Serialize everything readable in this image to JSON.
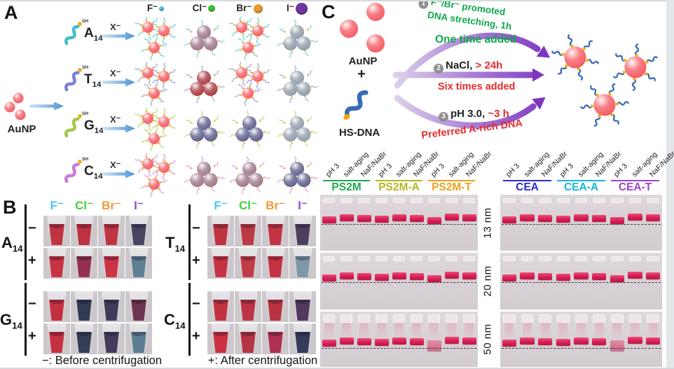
{
  "panel_a": {
    "label": "A",
    "aunp_label": "AuNP",
    "x_label": "X⁻",
    "thiol_label": "SH",
    "sphere_color": "#f4575f",
    "ions": [
      {
        "label": "F⁻",
        "dot_color": "#5fc3ec",
        "dot_size": 7
      },
      {
        "label": "Cl⁻",
        "dot_color": "#3bc43b",
        "dot_size": 10
      },
      {
        "label": "Br⁻",
        "dot_color": "#eb9a2e",
        "dot_size": 13
      },
      {
        "label": "I⁻",
        "dot_color": "#6f35a0",
        "dot_size": 17
      }
    ],
    "rows": [
      {
        "base": "A",
        "sub": "14",
        "strand_color": "#41bfca",
        "cells": [
          {
            "state": "dispersed"
          },
          {
            "state": "aggregated",
            "color": "#9c7388"
          },
          {
            "state": "dispersed"
          },
          {
            "state": "aggregated",
            "color": "#8f9aa6"
          }
        ]
      },
      {
        "base": "T",
        "sub": "14",
        "strand_color": "#7d82d8",
        "cells": [
          {
            "state": "dispersed"
          },
          {
            "state": "aggregated",
            "color": "#a8343c"
          },
          {
            "state": "dispersed"
          },
          {
            "state": "aggregated",
            "color": "#8f9aa6"
          }
        ]
      },
      {
        "base": "G",
        "sub": "14",
        "strand_color": "#a3c94e",
        "cells": [
          {
            "state": "dispersed"
          },
          {
            "state": "aggregated",
            "color": "#5a5b88"
          },
          {
            "state": "aggregated",
            "color": "#5a5b88"
          },
          {
            "state": "aggregated",
            "color": "#8f9aa6"
          }
        ]
      },
      {
        "base": "C",
        "sub": "14",
        "strand_color": "#c97bd9",
        "cells": [
          {
            "state": "dispersed"
          },
          {
            "state": "aggregated",
            "color": "#9c7388"
          },
          {
            "state": "aggregated",
            "color": "#9c7388"
          },
          {
            "state": "aggregated",
            "color": "#5a5b88"
          }
        ]
      }
    ]
  },
  "panel_b": {
    "label": "B",
    "ion_headers": [
      {
        "label": "F⁻",
        "color": "#45c8f2"
      },
      {
        "label": "Cl⁻",
        "color": "#3bd43b"
      },
      {
        "label": "Br⁻",
        "color": "#f2993a"
      },
      {
        "label": "I⁻",
        "color": "#8a4bd4"
      }
    ],
    "groups": [
      {
        "base": "A",
        "sub": "14",
        "rows": [
          {
            "sign": "−",
            "colors": [
              "#c03340",
              "#bd3140",
              "#bf3342",
              "#474560"
            ]
          },
          {
            "sign": "+",
            "colors": [
              "#c93243",
              "#93314e",
              "#cd3347",
              "#5f7e93"
            ]
          }
        ]
      },
      {
        "base": "T",
        "sub": "14",
        "rows": [
          {
            "sign": "−",
            "colors": [
              "#bf3340",
              "#bb3a45",
              "#c23442",
              "#4c3f5e"
            ]
          },
          {
            "sign": "+",
            "colors": [
              "#c63444",
              "#c23a47",
              "#c53343",
              "#7e98a8"
            ]
          }
        ]
      },
      {
        "base": "G",
        "sub": "14",
        "rows": [
          {
            "sign": "−",
            "colors": [
              "#c4303f",
              "#333b54",
              "#413b59",
              "#6e3550"
            ]
          },
          {
            "sign": "+",
            "colors": [
              "#c63141",
              "#363e56",
              "#453c5c",
              "#5c7e93"
            ]
          }
        ]
      },
      {
        "base": "C",
        "sub": "14",
        "rows": [
          {
            "sign": "−",
            "colors": [
              "#c13340",
              "#bd3545",
              "#b8333f",
              "#513a5e"
            ]
          },
          {
            "sign": "+",
            "colors": [
              "#cb3141",
              "#b43545",
              "#ad3050",
              "#333b5b"
            ]
          }
        ]
      }
    ],
    "caption_minus": "−: Before centrifugation",
    "caption_plus": "+: After centrifugation"
  },
  "panel_c": {
    "label": "C",
    "aunp_label": "AuNP",
    "plus_sign": "+",
    "hsdna_label": "HS-DNA",
    "text_green": "#0fa84b",
    "text_red": "#e62b2b",
    "arrow_purple": "#7d36c0",
    "steps": [
      {
        "num": "1",
        "line1": "F⁻/Br⁻ promoted",
        "line2": "DNA stretching, 1h",
        "note": "One time added"
      },
      {
        "num": "2",
        "reagent": "NaCl,",
        "condition": "> 24h",
        "note": "Six times added"
      },
      {
        "num": "3",
        "reagent": "pH 3.0,",
        "condition": "~3 h",
        "note": "Preferred A-rich DNA"
      }
    ],
    "gel": {
      "lane_labels": [
        "pH 3",
        "salt-aging",
        "NaF/NaBr"
      ],
      "left_groups": [
        {
          "name": "PS2M",
          "color": "#1fa750"
        },
        {
          "name": "PS2M-A",
          "color": "#b2b81f"
        },
        {
          "name": "PS2M-T",
          "color": "#f0a01f"
        }
      ],
      "right_groups": [
        {
          "name": "CEA",
          "color": "#2a2ace"
        },
        {
          "name": "CEA-A",
          "color": "#18b4dc"
        },
        {
          "name": "CEA-T",
          "color": "#9c42d2"
        }
      ],
      "sizes": [
        "13 nm",
        "20 nm",
        "50 nm"
      ],
      "band_color": "#d31f53"
    }
  }
}
